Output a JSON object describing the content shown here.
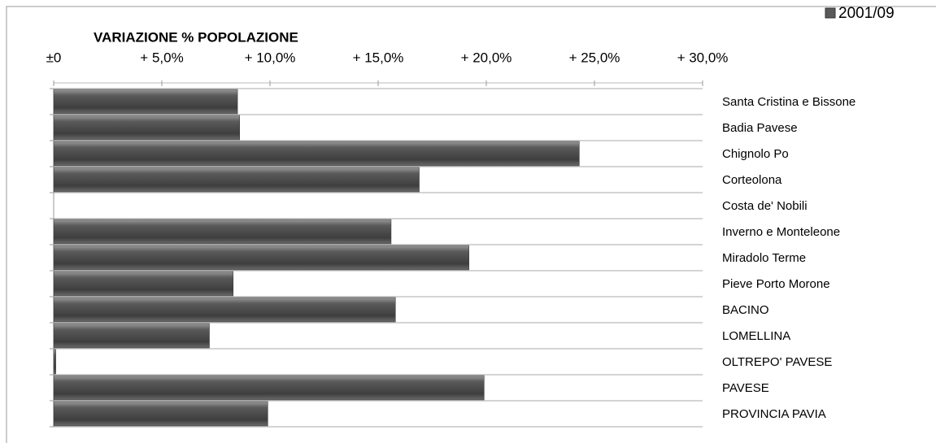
{
  "chart_data": {
    "type": "bar",
    "orientation": "horizontal",
    "title": "VARIAZIONE % POPOLAZIONE",
    "categories": [
      "Santa Cristina e Bissone",
      "Badia Pavese",
      "Chignolo Po",
      "Corteolona",
      "Costa de' Nobili",
      "Inverno e Monteleone",
      "Miradolo Terme",
      "Pieve Porto Morone",
      "BACINO",
      "LOMELLINA",
      "OLTREPO' PAVESE",
      "PAVESE",
      "PROVINCIA PAVIA"
    ],
    "series": [
      {
        "name": "2001/09",
        "color": "#595959",
        "values": [
          8.5,
          8.6,
          24.3,
          16.9,
          0,
          15.6,
          19.2,
          8.3,
          15.8,
          7.2,
          0.1,
          19.9,
          9.9
        ]
      }
    ],
    "xlim": [
      0,
      30
    ],
    "xticks": [
      {
        "value": 0,
        "label": "±0"
      },
      {
        "value": 5,
        "label": "+ 5,0%"
      },
      {
        "value": 10,
        "label": "+ 10,0%"
      },
      {
        "value": 15,
        "label": "+ 15,0%"
      },
      {
        "value": 20,
        "label": "+ 20,0%"
      },
      {
        "value": 25,
        "label": "+ 25,0%"
      },
      {
        "value": 30,
        "label": "+ 30,0%"
      }
    ],
    "legend": "top-right"
  }
}
